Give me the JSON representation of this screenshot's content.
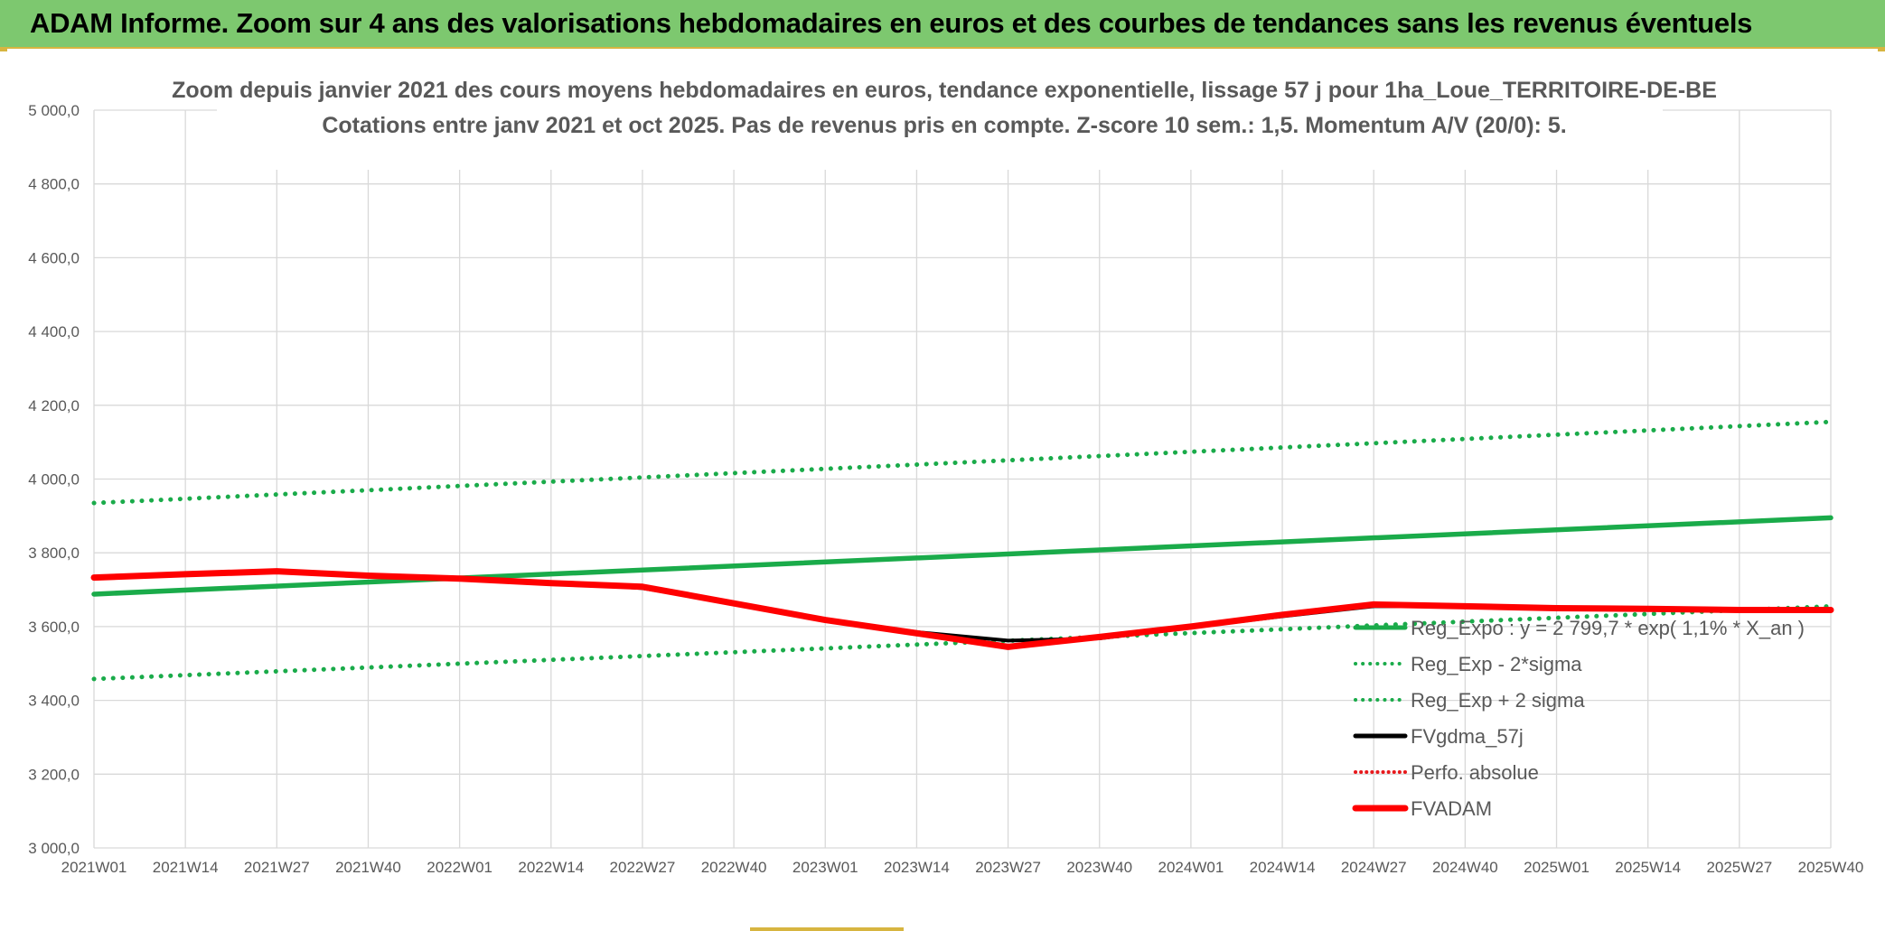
{
  "banner": {
    "title": "ADAM Informe. Zoom sur 4 ans des valorisations hebdomadaires en euros et des courbes de tendances sans les revenus éventuels"
  },
  "chart_data": {
    "type": "line",
    "title_line1": "Zoom depuis janvier 2021 des cours moyens hebdomadaires en euros, tendance exponentielle, lissage 57 j pour 1ha_Loue_TERRITOIRE-DE-BE",
    "title_line2": "Cotations entre janv 2021 et oct 2025. Pas de revenus pris en compte. Z-score 10 sem.: 1,5. Momentum A/V (20/0): 5.",
    "ylim": [
      3000,
      5000
    ],
    "ytick_values": [
      3000,
      3200,
      3400,
      3600,
      3800,
      4000,
      4200,
      4400,
      4600,
      4800,
      5000
    ],
    "ytick_labels": [
      "3 000,0",
      "3 200,0",
      "3 400,0",
      "3 600,0",
      "3 800,0",
      "4 000,0",
      "4 200,0",
      "4 400,0",
      "4 600,0",
      "4 800,0",
      "5 000,0"
    ],
    "xtick_labels": [
      "2021W01",
      "2021W14",
      "2021W27",
      "2021W40",
      "2022W01",
      "2022W14",
      "2022W27",
      "2022W40",
      "2023W01",
      "2023W14",
      "2023W27",
      "2023W40",
      "2024W01",
      "2024W14",
      "2024W27",
      "2024W40",
      "2025W01",
      "2025W14",
      "2025W27",
      "2025W40"
    ],
    "grid": true,
    "legend_position": "bottom-right",
    "series": [
      {
        "name": "Reg_Expo : y = 2 799,7 * exp( 1,1% * X_an )",
        "color": "#1aab4a",
        "style": "solid-thick",
        "x": [
          0,
          19
        ],
        "values": [
          3688,
          3895
        ]
      },
      {
        "name": "Reg_Exp - 2*sigma",
        "color": "#1aab4a",
        "style": "dotted",
        "x": [
          0,
          19
        ],
        "values": [
          3458,
          3655
        ]
      },
      {
        "name": "Reg_Exp + 2 sigma",
        "color": "#1aab4a",
        "style": "dotted",
        "x": [
          0,
          19
        ],
        "values": [
          3935,
          4155
        ]
      },
      {
        "name": "FVgdma_57j",
        "color": "#000000",
        "style": "solid",
        "x": [
          0,
          1,
          2,
          3,
          4,
          5,
          6,
          7,
          8,
          9,
          10,
          11,
          12,
          13,
          14,
          15,
          16,
          17,
          18,
          19
        ],
        "values": [
          3733,
          3742,
          3748,
          3738,
          3730,
          3720,
          3704,
          3665,
          3620,
          3585,
          3562,
          3568,
          3598,
          3628,
          3655,
          3655,
          3650,
          3648,
          3644,
          3644
        ]
      },
      {
        "name": "Perfo. absolue",
        "color": "#e8191c",
        "style": "dotted",
        "x": [],
        "values": []
      },
      {
        "name": "FVADAM",
        "color": "#ff0000",
        "style": "solid-thick",
        "x": [
          0,
          1,
          2,
          3,
          4,
          5,
          6,
          7,
          8,
          9,
          10,
          11,
          12,
          13,
          14,
          15,
          16,
          17,
          18,
          19
        ],
        "values": [
          3733,
          3742,
          3750,
          3738,
          3730,
          3718,
          3708,
          3663,
          3618,
          3582,
          3545,
          3572,
          3600,
          3632,
          3660,
          3655,
          3650,
          3648,
          3645,
          3645
        ]
      }
    ]
  }
}
